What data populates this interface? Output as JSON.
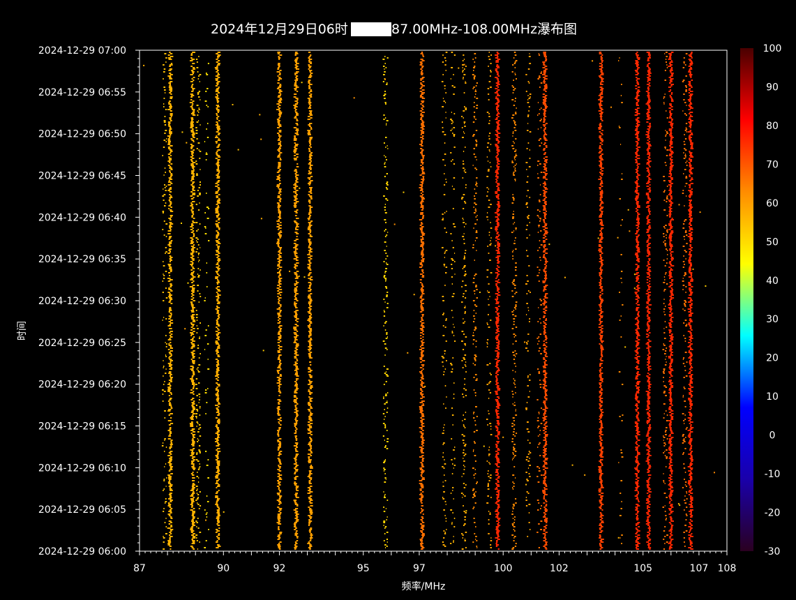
{
  "chart_data": {
    "type": "heatmap",
    "title": "2024年12月29日06时",
    "title_suffix": "87.00MHz-108.00MHz瀑布图",
    "title_redacted": true,
    "xlabel": "频率/MHz",
    "ylabel": "时间",
    "xlim": [
      87,
      108
    ],
    "x_ticks": [
      87,
      90,
      92,
      95,
      97,
      100,
      102,
      105,
      107,
      108
    ],
    "x_tick_labels": [
      "87",
      "90",
      "92",
      "95",
      "97",
      "100",
      "102",
      "105",
      "107",
      "108"
    ],
    "y_tick_labels": [
      "2024-12-29 07:00",
      "2024-12-29 06:55",
      "2024-12-29 06:50",
      "2024-12-29 06:45",
      "2024-12-29 06:40",
      "2024-12-29 06:35",
      "2024-12-29 06:30",
      "2024-12-29 06:25",
      "2024-12-29 06:20",
      "2024-12-29 06:15",
      "2024-12-29 06:10",
      "2024-12-29 06:05",
      "2024-12-29 06:00"
    ],
    "colorbar": {
      "min": -30,
      "max": 100,
      "ticks": [
        100,
        90,
        80,
        70,
        60,
        50,
        40,
        30,
        20,
        10,
        0,
        -10,
        -20,
        -30
      ],
      "colors": [
        "#2a0020",
        "#1a00aa",
        "#0000ff",
        "#00ffff",
        "#ffff00",
        "#ff8c00",
        "#ff0000",
        "#4a0000"
      ]
    },
    "background_color": "#000000",
    "signals": [
      {
        "freq": 87.9,
        "level": 55,
        "density": 0.35
      },
      {
        "freq": 88.1,
        "level": 57,
        "density": 0.9
      },
      {
        "freq": 88.9,
        "level": 57,
        "density": 0.95
      },
      {
        "freq": 89.1,
        "level": 54,
        "density": 0.45
      },
      {
        "freq": 89.4,
        "level": 50,
        "density": 0.15
      },
      {
        "freq": 89.8,
        "level": 58,
        "density": 0.95
      },
      {
        "freq": 92.0,
        "level": 60,
        "density": 0.95
      },
      {
        "freq": 92.6,
        "level": 60,
        "density": 0.9
      },
      {
        "freq": 93.1,
        "level": 60,
        "density": 0.95
      },
      {
        "freq": 95.8,
        "level": 52,
        "density": 0.45
      },
      {
        "freq": 97.1,
        "level": 64,
        "density": 0.95
      },
      {
        "freq": 97.9,
        "level": 58,
        "density": 0.3
      },
      {
        "freq": 98.2,
        "level": 57,
        "density": 0.25
      },
      {
        "freq": 98.6,
        "level": 58,
        "density": 0.35
      },
      {
        "freq": 99.0,
        "level": 62,
        "density": 0.4
      },
      {
        "freq": 99.5,
        "level": 60,
        "density": 0.35
      },
      {
        "freq": 99.8,
        "level": 70,
        "density": 0.98
      },
      {
        "freq": 100.4,
        "level": 62,
        "density": 0.5
      },
      {
        "freq": 100.9,
        "level": 60,
        "density": 0.3
      },
      {
        "freq": 101.3,
        "level": 64,
        "density": 0.3
      },
      {
        "freq": 101.5,
        "level": 67,
        "density": 0.97
      },
      {
        "freq": 103.5,
        "level": 68,
        "density": 0.97
      },
      {
        "freq": 104.2,
        "level": 62,
        "density": 0.15
      },
      {
        "freq": 104.8,
        "level": 70,
        "density": 0.98
      },
      {
        "freq": 105.2,
        "level": 72,
        "density": 0.97
      },
      {
        "freq": 105.8,
        "level": 64,
        "density": 0.4
      },
      {
        "freq": 106.0,
        "level": 71,
        "density": 0.97
      },
      {
        "freq": 106.5,
        "level": 64,
        "density": 0.4
      },
      {
        "freq": 106.7,
        "level": 70,
        "density": 0.97
      }
    ]
  }
}
